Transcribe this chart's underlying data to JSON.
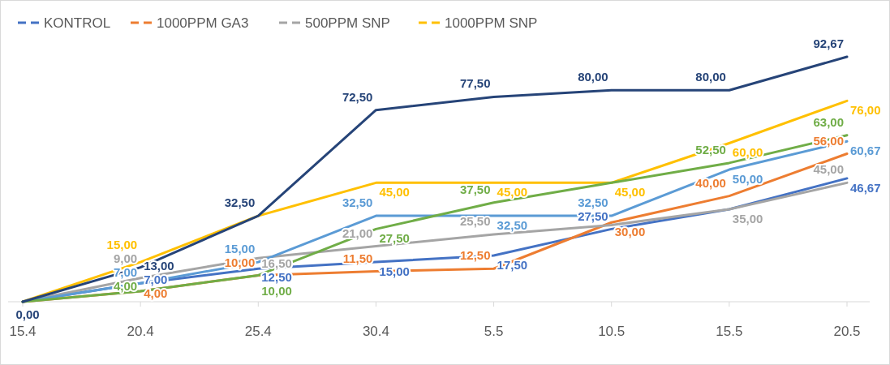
{
  "chart_data": {
    "type": "line",
    "categories": [
      "15.4",
      "20.4",
      "25.4",
      "30.4",
      "5.5",
      "10.5",
      "15.5",
      "20.5"
    ],
    "series": [
      {
        "name": "KONTROL",
        "color": "#4472c4",
        "values": [
          0,
          7,
          12.5,
          15,
          17.5,
          27.5,
          35,
          46.67
        ],
        "value_labels": [
          null,
          "7,00",
          "12,50",
          "15,00",
          "17,50",
          "27,50",
          null,
          "46,67"
        ]
      },
      {
        "name": "1000PPM GA3",
        "color": "#ed7d31",
        "values": [
          0,
          4,
          10,
          11.5,
          12.5,
          30,
          40,
          56
        ],
        "value_labels": [
          null,
          "4,00",
          "10,00",
          "11,50",
          "12,50",
          "30,00",
          "40,00",
          "56,00"
        ]
      },
      {
        "name": "500PPM SNP",
        "color": "#a5a5a5",
        "values": [
          0,
          9,
          16.5,
          21,
          25.5,
          29,
          35,
          45
        ],
        "value_labels": [
          null,
          "9,00",
          "16,50",
          "21,00",
          "25,50",
          null,
          "35,00",
          "45,00"
        ]
      },
      {
        "name": "1000PPM SNP",
        "color": "#ffc000",
        "values": [
          0,
          15,
          32.5,
          45,
          45,
          45,
          60,
          76
        ],
        "value_labels": [
          null,
          "15,00",
          null,
          "45,00",
          "45,00",
          "45,00",
          "60,00",
          "76,00"
        ]
      },
      {
        "color": "#5b9bd5",
        "values": [
          0,
          7,
          15,
          32.5,
          32.5,
          32.5,
          50,
          60.67
        ],
        "value_labels": [
          null,
          "7,00",
          "15,00",
          "32,50",
          "32,50",
          "32,50",
          "50,00",
          "60,67"
        ]
      },
      {
        "color": "#70ad47",
        "values": [
          0,
          4,
          10,
          27.5,
          37.5,
          45,
          52.5,
          63
        ],
        "value_labels": [
          null,
          "4,00",
          "10,00",
          "27,50",
          "37,50",
          null,
          "52,50",
          "63,00"
        ]
      },
      {
        "color": "#264478",
        "values": [
          0,
          13,
          32.5,
          72.5,
          77.5,
          80,
          80,
          92.67
        ],
        "value_labels": [
          "0,00",
          "13,00",
          "32,50",
          "72,50",
          "77,50",
          "80,00",
          "80,00",
          "92,67"
        ]
      }
    ],
    "data_labels": true,
    "grid": false,
    "legend": "top left",
    "marker": "none",
    "line_style": "solid"
  }
}
